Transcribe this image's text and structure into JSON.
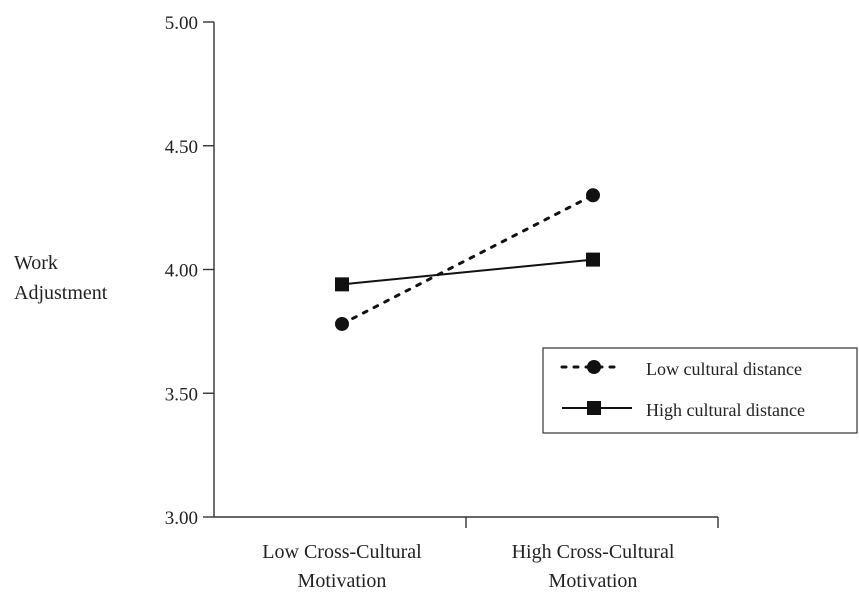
{
  "chart_data": {
    "type": "line",
    "title": "",
    "xlabel": "",
    "ylabel": [
      "Work",
      "Adjustment"
    ],
    "categories": [
      [
        "Low Cross-Cultural",
        "Motivation"
      ],
      [
        "High Cross-Cultural",
        "Motivation"
      ]
    ],
    "ylim": [
      3.0,
      5.0
    ],
    "yticks": [
      "3.00",
      "3.50",
      "4.00",
      "4.50",
      "5.00"
    ],
    "ytick_values": [
      3.0,
      3.5,
      4.0,
      4.5,
      5.0
    ],
    "grid": false,
    "legend_position": "right",
    "series": [
      {
        "name": "Low cultural distance",
        "values": [
          3.78,
          4.3
        ],
        "line_style": "dotted",
        "marker": "circle",
        "color": "#111111"
      },
      {
        "name": "High cultural distance",
        "values": [
          3.94,
          4.04
        ],
        "line_style": "solid",
        "marker": "square",
        "color": "#111111"
      }
    ]
  }
}
